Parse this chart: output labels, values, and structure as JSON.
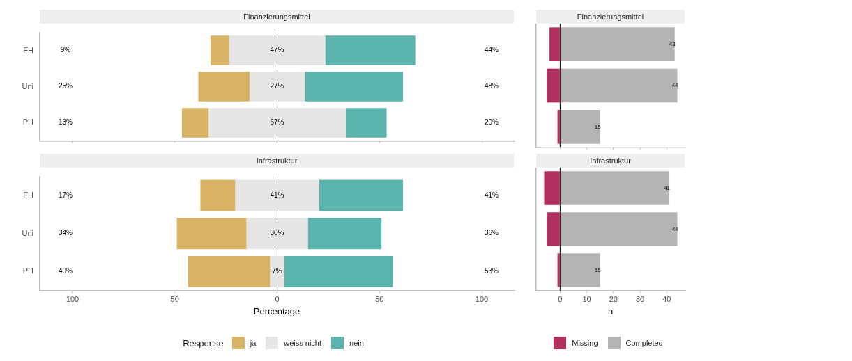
{
  "chart_data": [
    {
      "type": "bar",
      "orientation": "horizontal",
      "title": "Finanzierungsmittel",
      "categories": [
        "FH",
        "Uni",
        "PH"
      ],
      "xlim": [
        -116,
        116
      ],
      "xticks": [
        {
          "value": -100,
          "label": null
        },
        {
          "value": -50,
          "label": null
        },
        {
          "value": 0,
          "label": null
        },
        {
          "value": 50,
          "label": null
        },
        {
          "value": 100,
          "label": null
        }
      ],
      "tick_labels": "y",
      "legend": false,
      "ref_lines": [
        {
          "axis": "x",
          "value": 0,
          "color": "#000000"
        }
      ],
      "series": [
        {
          "color": "#d8b365",
          "values": [
            9,
            25,
            13
          ],
          "base": [
            -32.5,
            -38.5,
            -46.5
          ],
          "value_labels": [
            "9%",
            "25%",
            "13%"
          ]
        },
        {
          "color": "#e5e5e5",
          "values": [
            47,
            27,
            67
          ],
          "base": [
            -23.5,
            -13.5,
            -33.5
          ],
          "value_labels": [
            "47%",
            "27%",
            "67%"
          ]
        },
        {
          "color": "#5ab4ac",
          "values": [
            44,
            48,
            20
          ],
          "base": [
            23.5,
            13.5,
            33.5
          ],
          "value_labels": [
            "44%",
            "48%",
            "20%"
          ]
        }
      ]
    },
    {
      "type": "bar",
      "orientation": "horizontal",
      "stacked": true,
      "title": "Finanzierungsmittel",
      "categories": [
        null,
        null,
        null
      ],
      "xlim": [
        -9,
        47
      ],
      "xticks": [
        {
          "value": 0,
          "label": null
        },
        {
          "value": 10,
          "label": null
        },
        {
          "value": 20,
          "label": null
        },
        {
          "value": 30,
          "label": null
        },
        {
          "value": 40,
          "label": null
        }
      ],
      "tick_labels": false,
      "legend": false,
      "ref_lines": [
        {
          "axis": "x",
          "value": 0,
          "color": "#000000"
        }
      ],
      "series": [
        {
          "color": "#b2305f",
          "values": [
            -4,
            -5,
            -1
          ]
        },
        {
          "color": "#b3b3b3",
          "values": [
            43,
            44,
            15
          ],
          "value_labels": [
            "43",
            "44",
            "15"
          ]
        }
      ]
    },
    {
      "type": "bar",
      "orientation": "horizontal",
      "title": "Infrastruktur",
      "xlabel": "Percentage",
      "legend_title": "Response",
      "categories": [
        "FH",
        "Uni",
        "PH"
      ],
      "xlim": [
        -116,
        116
      ],
      "xticks": [
        {
          "value": -100,
          "label": "100"
        },
        {
          "value": -50,
          "label": "50"
        },
        0,
        50,
        100
      ],
      "legend": "bottom",
      "ref_lines": [
        {
          "axis": "x",
          "value": 0,
          "color": "#000000"
        }
      ],
      "series": [
        {
          "name": "ja",
          "color": "#d8b365",
          "values": [
            17,
            34,
            40
          ],
          "base": [
            -37.5,
            -49,
            -43.5
          ],
          "value_labels": [
            "17%",
            "34%",
            "40%"
          ]
        },
        {
          "name": "weiss nicht",
          "color": "#e5e5e5",
          "values": [
            41,
            30,
            7
          ],
          "base": [
            -20.5,
            -15,
            -3.5
          ],
          "value_labels": [
            "41%",
            "30%",
            "7%"
          ]
        },
        {
          "name": "nein",
          "color": "#5ab4ac",
          "values": [
            41,
            36,
            53
          ],
          "base": [
            20.5,
            15,
            3.5
          ],
          "value_labels": [
            "41%",
            "36%",
            "53%"
          ]
        }
      ]
    },
    {
      "type": "bar",
      "orientation": "horizontal",
      "stacked": true,
      "title": "Infrastruktur",
      "xlabel": "n",
      "categories": [
        null,
        null,
        null
      ],
      "xlim": [
        -9,
        47
      ],
      "xticks": [
        0,
        10,
        20,
        30,
        40
      ],
      "tick_labels": "x",
      "legend": "bottom",
      "ref_lines": [
        {
          "axis": "x",
          "value": 0,
          "color": "#000000"
        }
      ],
      "series": [
        {
          "name": "Missing",
          "color": "#b2305f",
          "values": [
            -6,
            -5,
            -1
          ]
        },
        {
          "name": "Completed",
          "color": "#b3b3b3",
          "values": [
            41,
            44,
            15
          ],
          "value_labels": [
            "41",
            "44",
            "15"
          ]
        }
      ]
    }
  ]
}
